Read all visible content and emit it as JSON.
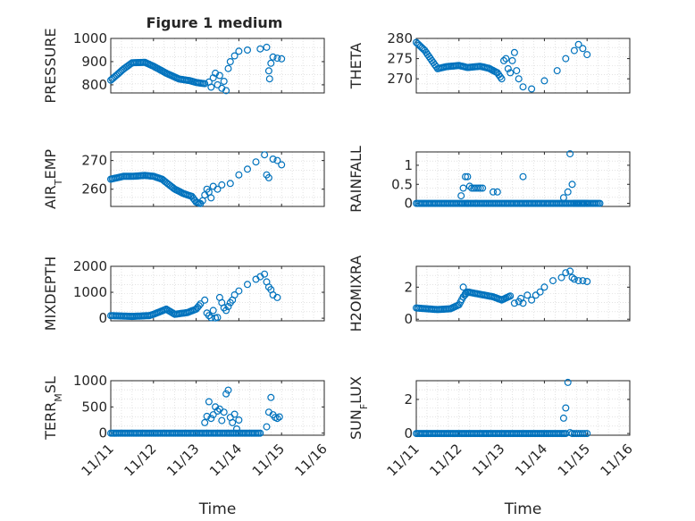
{
  "figure": {
    "title": "Figure 1 medium"
  },
  "style": {
    "marker_color": "#0072BD",
    "axis_color": "#262626",
    "grid_color": "#d0d0d0"
  },
  "chart_data": [
    {
      "type": "scatter",
      "name": "pressure",
      "ylabel": "PRESSURE",
      "title": "Figure 1 medium",
      "xlabel": "",
      "xticks": [
        "11/11",
        "11/12",
        "11/13",
        "11/14",
        "11/15",
        "11/16"
      ],
      "xlim": [
        0,
        5
      ],
      "ylim": [
        765,
        1000
      ],
      "yticks": [
        800,
        900,
        1000
      ],
      "grid": true,
      "segments": [
        [
          0.0,
          820
        ],
        [
          0.3,
          868
        ],
        [
          0.5,
          895
        ],
        [
          0.8,
          897
        ],
        [
          1.0,
          880
        ],
        [
          1.3,
          850
        ],
        [
          1.6,
          825
        ],
        [
          1.85,
          818
        ],
        [
          2.0,
          810
        ],
        [
          2.2,
          805
        ]
      ],
      "points": [
        [
          2.3,
          812
        ],
        [
          2.35,
          790
        ],
        [
          2.4,
          830
        ],
        [
          2.45,
          850
        ],
        [
          2.5,
          800
        ],
        [
          2.55,
          840
        ],
        [
          2.6,
          785
        ],
        [
          2.65,
          815
        ],
        [
          2.7,
          775
        ],
        [
          2.75,
          870
        ],
        [
          2.8,
          900
        ],
        [
          2.9,
          925
        ],
        [
          3.0,
          945
        ],
        [
          3.2,
          950
        ],
        [
          3.5,
          955
        ],
        [
          3.65,
          962
        ],
        [
          3.7,
          860
        ],
        [
          3.72,
          826
        ],
        [
          3.75,
          893
        ],
        [
          3.8,
          920
        ],
        [
          3.9,
          915
        ],
        [
          4.0,
          912
        ]
      ]
    },
    {
      "type": "scatter",
      "name": "theta",
      "ylabel": "THETA",
      "xlabel": "",
      "xticks": [
        "11/11",
        "11/12",
        "11/13",
        "11/14",
        "11/15",
        "11/16"
      ],
      "xlim": [
        0,
        5
      ],
      "ylim": [
        266.5,
        280
      ],
      "yticks": [
        270,
        275,
        280
      ],
      "grid": true,
      "segments": [
        [
          0.0,
          279.0
        ],
        [
          0.2,
          277.0
        ],
        [
          0.4,
          274.0
        ],
        [
          0.5,
          272.5
        ],
        [
          0.7,
          273.0
        ],
        [
          1.0,
          273.3
        ],
        [
          1.2,
          272.8
        ],
        [
          1.5,
          273.1
        ],
        [
          1.7,
          272.6
        ],
        [
          1.9,
          271.5
        ],
        [
          2.0,
          270.0
        ]
      ],
      "points": [
        [
          2.05,
          274.5
        ],
        [
          2.1,
          275.0
        ],
        [
          2.15,
          272.5
        ],
        [
          2.2,
          271.5
        ],
        [
          2.25,
          274.5
        ],
        [
          2.3,
          276.5
        ],
        [
          2.35,
          272.0
        ],
        [
          2.4,
          270.0
        ],
        [
          2.5,
          268.0
        ],
        [
          2.7,
          267.5
        ],
        [
          3.0,
          269.5
        ],
        [
          3.3,
          272.0
        ],
        [
          3.5,
          275.0
        ],
        [
          3.7,
          277.0
        ],
        [
          3.8,
          278.5
        ],
        [
          3.9,
          277.5
        ],
        [
          4.0,
          276.0
        ]
      ]
    },
    {
      "type": "scatter",
      "name": "air_temp",
      "ylabel": "AIR_TEMP",
      "xlabel": "",
      "xticks": [
        "11/11",
        "11/12",
        "11/13",
        "11/14",
        "11/15",
        "11/16"
      ],
      "xlim": [
        0,
        5
      ],
      "ylim": [
        254,
        273
      ],
      "yticks": [
        260,
        270
      ],
      "grid": true,
      "segments": [
        [
          0.0,
          263.5
        ],
        [
          0.3,
          264.5
        ],
        [
          0.5,
          264.5
        ],
        [
          0.8,
          264.8
        ],
        [
          1.0,
          264.5
        ],
        [
          1.2,
          263.5
        ],
        [
          1.5,
          260.0
        ],
        [
          1.7,
          258.5
        ],
        [
          1.9,
          257.5
        ],
        [
          2.0,
          255.5
        ],
        [
          2.1,
          255.0
        ]
      ],
      "points": [
        [
          2.15,
          256.0
        ],
        [
          2.2,
          258.0
        ],
        [
          2.25,
          260.0
        ],
        [
          2.3,
          259.0
        ],
        [
          2.35,
          257.0
        ],
        [
          2.4,
          261.0
        ],
        [
          2.5,
          260.0
        ],
        [
          2.6,
          261.5
        ],
        [
          2.8,
          262.0
        ],
        [
          3.0,
          265.0
        ],
        [
          3.2,
          267.0
        ],
        [
          3.4,
          269.5
        ],
        [
          3.6,
          272.0
        ],
        [
          3.65,
          265.0
        ],
        [
          3.7,
          264.0
        ],
        [
          3.8,
          270.5
        ],
        [
          3.9,
          270.0
        ],
        [
          4.0,
          268.5
        ]
      ]
    },
    {
      "type": "scatter",
      "name": "rainfall",
      "ylabel": "RAINFALL",
      "xlabel": "",
      "xticks": [
        "11/11",
        "11/12",
        "11/13",
        "11/14",
        "11/15",
        "11/16"
      ],
      "xlim": [
        0,
        5
      ],
      "ylim": [
        -0.08,
        1.35
      ],
      "yticks": [
        0,
        0.5,
        1
      ],
      "ytick_labels": [
        "0",
        "0.5",
        "1"
      ],
      "grid": true,
      "segments": [
        [
          0.0,
          0
        ],
        [
          4.3,
          0
        ]
      ],
      "points": [
        [
          1.05,
          0.2
        ],
        [
          1.1,
          0.4
        ],
        [
          1.15,
          0.7
        ],
        [
          1.2,
          0.7
        ],
        [
          1.25,
          0.45
        ],
        [
          1.3,
          0.4
        ],
        [
          1.35,
          0.4
        ],
        [
          1.4,
          0.4
        ],
        [
          1.45,
          0.4
        ],
        [
          1.5,
          0.4
        ],
        [
          1.55,
          0.4
        ],
        [
          1.2,
          0.0
        ],
        [
          1.4,
          0.0
        ],
        [
          1.8,
          0.3
        ],
        [
          1.9,
          0.3
        ],
        [
          2.5,
          0.7
        ],
        [
          3.45,
          0.15
        ],
        [
          3.55,
          0.3
        ],
        [
          3.6,
          1.3
        ],
        [
          3.65,
          0.5
        ],
        [
          3.7,
          0.0
        ],
        [
          3.75,
          0.0
        ],
        [
          3.8,
          0.0
        ],
        [
          3.85,
          0.0
        ],
        [
          3.9,
          0.0
        ],
        [
          3.95,
          0.0
        ],
        [
          4.0,
          0.0
        ]
      ]
    },
    {
      "type": "scatter",
      "name": "mixdepth",
      "ylabel": "MIXDEPTH",
      "xlabel": "",
      "xticks": [
        "11/11",
        "11/12",
        "11/13",
        "11/14",
        "11/15",
        "11/16"
      ],
      "xlim": [
        0,
        5
      ],
      "ylim": [
        -100,
        2000
      ],
      "yticks": [
        0,
        1000,
        2000
      ],
      "grid": true,
      "segments": [
        [
          0.0,
          100
        ],
        [
          0.5,
          70
        ],
        [
          0.9,
          100
        ],
        [
          1.0,
          150
        ],
        [
          1.3,
          350
        ],
        [
          1.5,
          150
        ],
        [
          1.8,
          220
        ],
        [
          2.0,
          350
        ],
        [
          2.1,
          550
        ]
      ],
      "points": [
        [
          2.2,
          700
        ],
        [
          2.25,
          200
        ],
        [
          2.3,
          100
        ],
        [
          2.35,
          20
        ],
        [
          2.4,
          300
        ],
        [
          2.45,
          10
        ],
        [
          2.5,
          30
        ],
        [
          2.55,
          800
        ],
        [
          2.6,
          600
        ],
        [
          2.65,
          400
        ],
        [
          2.7,
          300
        ],
        [
          2.75,
          450
        ],
        [
          2.8,
          600
        ],
        [
          2.85,
          700
        ],
        [
          2.9,
          900
        ],
        [
          3.0,
          1050
        ],
        [
          3.2,
          1300
        ],
        [
          3.4,
          1500
        ],
        [
          3.5,
          1600
        ],
        [
          3.6,
          1700
        ],
        [
          3.65,
          1400
        ],
        [
          3.7,
          1200
        ],
        [
          3.75,
          1100
        ],
        [
          3.8,
          900
        ],
        [
          3.9,
          800
        ]
      ]
    },
    {
      "type": "scatter",
      "name": "h2omixra",
      "ylabel": "H2OMIXRA",
      "xlabel": "",
      "xticks": [
        "11/11",
        "11/12",
        "11/13",
        "11/14",
        "11/15",
        "11/16"
      ],
      "xlim": [
        0,
        5
      ],
      "ylim": [
        -0.1,
        3.3
      ],
      "yticks": [
        0,
        2
      ],
      "grid": true,
      "segments": [
        [
          0.0,
          0.7
        ],
        [
          0.5,
          0.6
        ],
        [
          0.8,
          0.65
        ],
        [
          1.0,
          0.9
        ],
        [
          1.1,
          1.4
        ],
        [
          1.2,
          1.7
        ],
        [
          1.5,
          1.55
        ],
        [
          1.8,
          1.4
        ],
        [
          2.0,
          1.2
        ],
        [
          2.2,
          1.45
        ]
      ],
      "points": [
        [
          1.1,
          2.0
        ],
        [
          1.15,
          1.6
        ],
        [
          2.3,
          1.0
        ],
        [
          2.4,
          1.1
        ],
        [
          2.45,
          1.3
        ],
        [
          2.5,
          1.0
        ],
        [
          2.6,
          1.5
        ],
        [
          2.7,
          1.2
        ],
        [
          2.8,
          1.5
        ],
        [
          2.9,
          1.7
        ],
        [
          3.0,
          2.0
        ],
        [
          3.2,
          2.4
        ],
        [
          3.4,
          2.6
        ],
        [
          3.5,
          2.9
        ],
        [
          3.6,
          3.0
        ],
        [
          3.65,
          2.6
        ],
        [
          3.7,
          2.5
        ],
        [
          3.8,
          2.4
        ],
        [
          3.9,
          2.4
        ],
        [
          4.0,
          2.35
        ]
      ]
    },
    {
      "type": "scatter",
      "name": "terr_msl",
      "ylabel": "TERR_MSL",
      "xlabel": "Time",
      "xticks": [
        "11/11",
        "11/12",
        "11/13",
        "11/14",
        "11/15",
        "11/16"
      ],
      "xlim": [
        0,
        5
      ],
      "ylim": [
        -40,
        1000
      ],
      "yticks": [
        0,
        500,
        1000
      ],
      "grid": true,
      "segments": [
        [
          0.0,
          0
        ],
        [
          2.15,
          0
        ],
        [
          3.5,
          0
        ]
      ],
      "points": [
        [
          2.2,
          200
        ],
        [
          2.25,
          320
        ],
        [
          2.3,
          600
        ],
        [
          2.35,
          280
        ],
        [
          2.4,
          350
        ],
        [
          2.45,
          500
        ],
        [
          2.5,
          420
        ],
        [
          2.55,
          460
        ],
        [
          2.6,
          240
        ],
        [
          2.65,
          400
        ],
        [
          2.7,
          750
        ],
        [
          2.75,
          820
        ],
        [
          2.8,
          300
        ],
        [
          2.85,
          200
        ],
        [
          2.9,
          360
        ],
        [
          2.95,
          80
        ],
        [
          3.0,
          250
        ],
        [
          3.65,
          120
        ],
        [
          3.7,
          400
        ],
        [
          3.75,
          680
        ],
        [
          3.8,
          350
        ],
        [
          3.85,
          300
        ],
        [
          3.9,
          280
        ],
        [
          3.95,
          310
        ]
      ]
    },
    {
      "type": "scatter",
      "name": "sun_flux",
      "ylabel": "SUN_FLUX",
      "xlabel": "Time",
      "xticks": [
        "11/11",
        "11/12",
        "11/13",
        "11/14",
        "11/15",
        "11/16"
      ],
      "xlim": [
        0,
        5
      ],
      "ylim": [
        -0.1,
        3.1
      ],
      "yticks": [
        0,
        2
      ],
      "grid": true,
      "segments": [
        [
          0.0,
          0
        ],
        [
          3.5,
          0
        ]
      ],
      "points": [
        [
          3.45,
          0.9
        ],
        [
          3.5,
          1.5
        ],
        [
          3.55,
          3.0
        ],
        [
          3.6,
          0.05
        ],
        [
          3.65,
          0.0
        ],
        [
          3.7,
          0.0
        ],
        [
          3.75,
          0.0
        ],
        [
          3.8,
          0.0
        ],
        [
          3.85,
          0.0
        ],
        [
          3.9,
          0.0
        ],
        [
          3.95,
          0.0
        ],
        [
          4.0,
          0.0
        ]
      ]
    }
  ]
}
